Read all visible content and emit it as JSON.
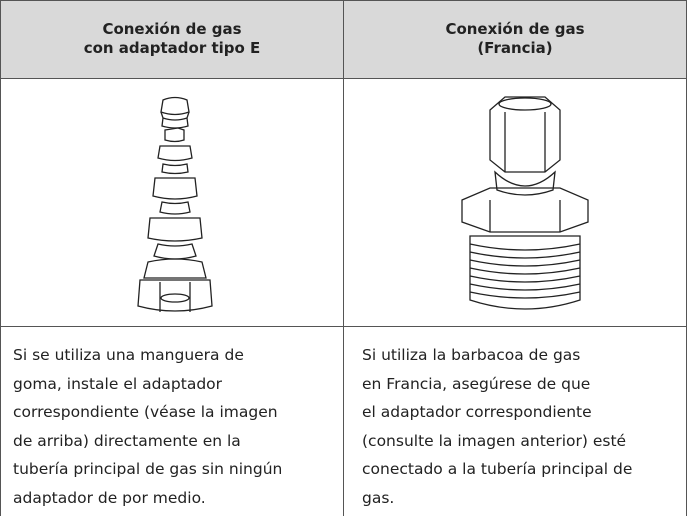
{
  "table": {
    "header": [
      [
        "Conexión de gas",
        "con adaptador tipo E"
      ],
      [
        "Conexión de gas",
        "(Francia)"
      ]
    ],
    "descriptions": [
      [
        "Si se utiliza una manguera de",
        "goma, instale el adaptador",
        "correspondiente (véase la imagen",
        "de arriba) directamente en la",
        "tubería principal de gas sin ningún",
        "adaptador de por medio."
      ],
      [
        "Si utiliza la barbacoa de gas",
        "en Francia, asegúrese de que",
        "el adaptador correspondiente",
        "(consulte la imagen anterior) esté",
        "conectado a la tubería principal de",
        "gas."
      ]
    ]
  }
}
